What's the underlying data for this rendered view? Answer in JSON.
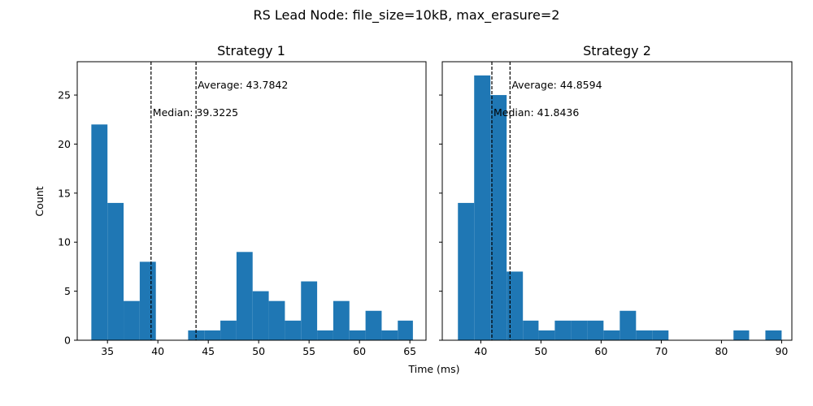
{
  "figure": {
    "suptitle": "RS Lead Node: file_size=10kB, max_erasure=2",
    "xlabel": "Time (ms)",
    "ylabel": "Count"
  },
  "colors": {
    "bar": "#1f77b4",
    "line": "#000000",
    "axis": "#000000",
    "background": "#ffffff"
  },
  "chart_data": [
    {
      "type": "bar",
      "title": "Strategy 1",
      "xlabel": "Time (ms)",
      "ylabel": "Count",
      "xlim": [
        32.0,
        66.6
      ],
      "ylim": [
        0,
        28.4
      ],
      "xticks": [
        35,
        40,
        45,
        50,
        55,
        60,
        65
      ],
      "yticks": [
        0,
        5,
        10,
        15,
        20,
        25
      ],
      "bin_edges": [
        33.4,
        35.0,
        36.6,
        38.2,
        39.8,
        41.4,
        43.0,
        44.6,
        46.2,
        47.8,
        49.4,
        51.0,
        52.6,
        54.2,
        55.8,
        57.4,
        59.0,
        60.6,
        62.2,
        63.8,
        65.3
      ],
      "counts": [
        22,
        14,
        4,
        8,
        0,
        0,
        1,
        1,
        2,
        9,
        5,
        4,
        2,
        6,
        1,
        4,
        1,
        3,
        1,
        2
      ],
      "median": {
        "label": "Median: 39.3225",
        "value": 39.3225
      },
      "average": {
        "label": "Average: 43.7842",
        "value": 43.7842
      },
      "grid": false
    },
    {
      "type": "bar",
      "title": "Strategy 2",
      "xlabel": "Time (ms)",
      "ylabel": "Count",
      "xlim": [
        33.6,
        91.7
      ],
      "ylim": [
        0,
        28.4
      ],
      "xticks": [
        40,
        50,
        60,
        70,
        80,
        90
      ],
      "yticks": [
        0,
        5,
        10,
        15,
        20,
        25
      ],
      "bin_edges": [
        36.2,
        38.9,
        41.6,
        44.3,
        47.0,
        49.6,
        52.3,
        55.0,
        57.7,
        60.4,
        63.1,
        65.8,
        68.5,
        71.2,
        73.9,
        76.6,
        79.3,
        82.0,
        84.6,
        87.3,
        90.0
      ],
      "counts": [
        14,
        27,
        25,
        7,
        2,
        1,
        2,
        2,
        2,
        1,
        3,
        1,
        1,
        0,
        0,
        0,
        0,
        1,
        0,
        1
      ],
      "median": {
        "label": "Median: 41.8436",
        "value": 41.8436
      },
      "average": {
        "label": "Average: 44.8594",
        "value": 44.8594
      },
      "grid": false
    }
  ]
}
